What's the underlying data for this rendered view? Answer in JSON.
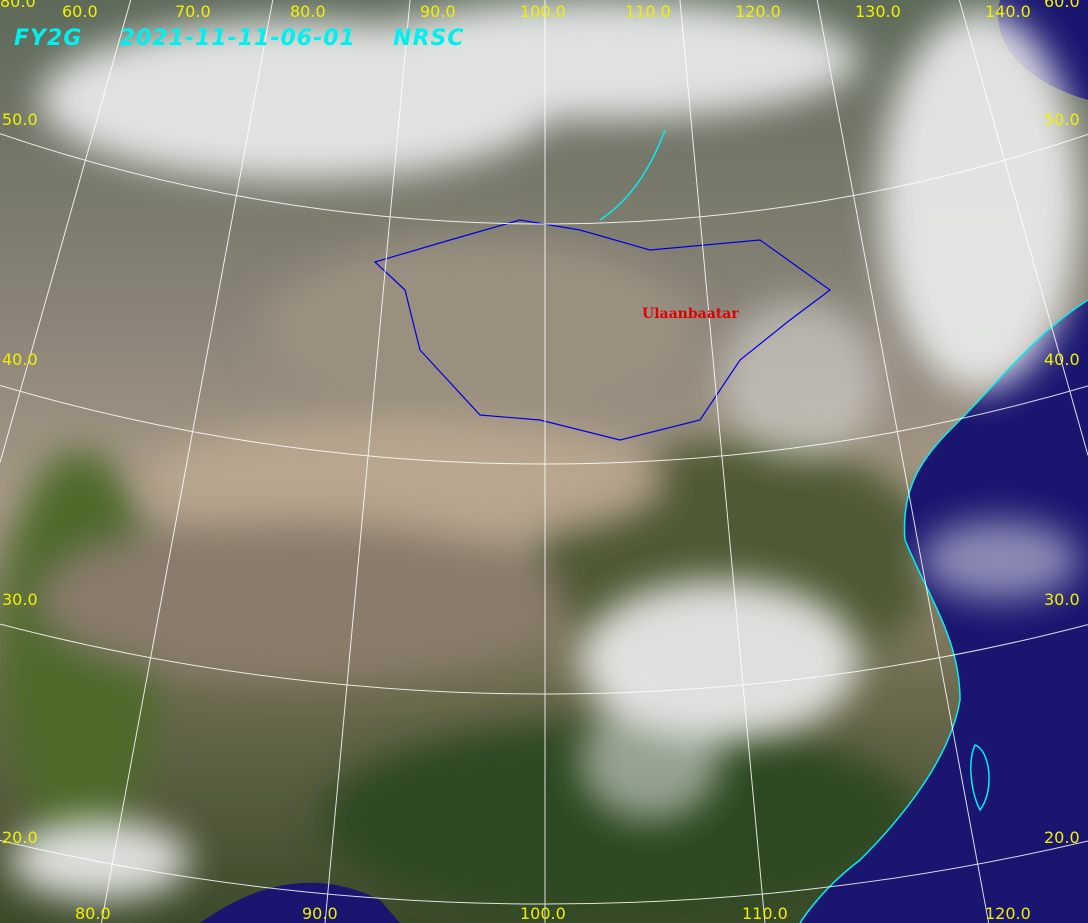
{
  "title": "FY2G  2021-11-11-06-01  NRSC",
  "city_label": "Ulaanbaatar",
  "colors": {
    "grid": "#ffffff",
    "coast": "#00f0f0",
    "border": "#0000e0",
    "labels": "#f0f000",
    "city": "#e00000",
    "ocean": "#1a1670"
  },
  "top_labels": [
    "60.0",
    "70.0",
    "80.0",
    "90.0",
    "100.0",
    "110.0",
    "120.0",
    "130.0",
    "140.0"
  ],
  "corner_labels": {
    "top_left": "80.0",
    "top_right": "60.0"
  },
  "left_labels": [
    "50.0",
    "40.0",
    "30.0",
    "20.0"
  ],
  "right_labels": [
    "50.0",
    "40.0",
    "30.0",
    "20.0"
  ],
  "bottom_labels": [
    "80.0",
    "90.0",
    "100.0",
    "110.0",
    "120.0"
  ]
}
